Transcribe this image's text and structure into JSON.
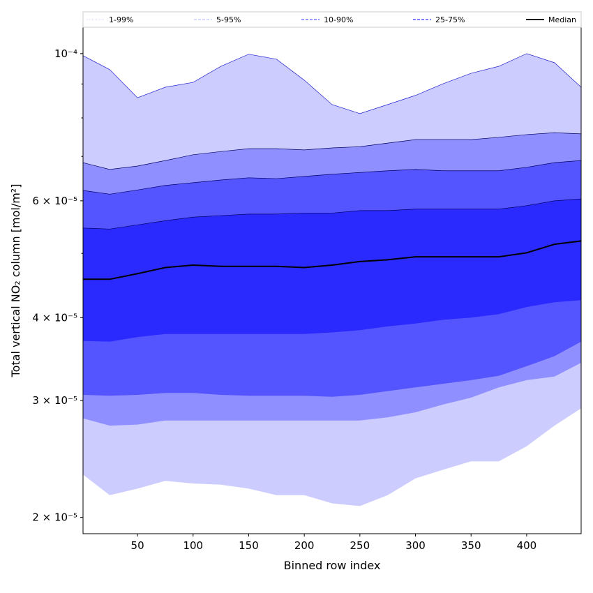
{
  "chart_data": {
    "type": "area",
    "title": "",
    "xlabel": "Binned row index",
    "ylabel": "Total vertical NO₂ column [mol/m²]",
    "yscale": "log",
    "xlim": [
      1,
      449
    ],
    "ylim": [
      1.89e-05,
      0.0001096
    ],
    "value_multiplier": 1e-05,
    "grid": false,
    "legend_placement": "top, above plot, spanning width",
    "x_ticks": [
      50,
      100,
      150,
      200,
      250,
      300,
      350,
      400
    ],
    "x_tick_labels": [
      "50",
      "100",
      "150",
      "200",
      "250",
      "300",
      "350",
      "400"
    ],
    "y_ticks": [
      0.0001,
      6e-05,
      4e-05,
      3e-05,
      2e-05
    ],
    "y_tick_labels": [
      "10⁻⁴",
      "6 × 10⁻⁵",
      "4 × 10⁻⁵",
      "3 × 10⁻⁵",
      "2 × 10⁻⁵"
    ],
    "y_minor_ticks": [
      9e-05,
      8e-05,
      7e-05,
      5e-05
    ],
    "x": [
      1,
      25,
      50,
      75,
      100,
      125,
      150,
      175,
      200,
      225,
      250,
      275,
      300,
      325,
      350,
      375,
      400,
      425,
      449
    ],
    "series": [
      {
        "name": "p99",
        "values": [
          9.93,
          9.46,
          8.58,
          8.9,
          9.05,
          9.57,
          9.98,
          9.81,
          9.12,
          8.38,
          8.12,
          8.38,
          8.65,
          9.01,
          9.34,
          9.57,
          10.0,
          9.69,
          8.9
        ]
      },
      {
        "name": "p95",
        "values": [
          6.85,
          6.69,
          6.77,
          6.9,
          7.04,
          7.12,
          7.19,
          7.19,
          7.16,
          7.21,
          7.24,
          7.33,
          7.42,
          7.42,
          7.42,
          7.48,
          7.55,
          7.6,
          7.57
        ]
      },
      {
        "name": "p90",
        "values": [
          6.22,
          6.14,
          6.23,
          6.33,
          6.39,
          6.45,
          6.5,
          6.48,
          6.53,
          6.58,
          6.62,
          6.66,
          6.69,
          6.66,
          6.66,
          6.66,
          6.74,
          6.85,
          6.9
        ]
      },
      {
        "name": "p75",
        "values": [
          5.46,
          5.44,
          5.52,
          5.6,
          5.67,
          5.7,
          5.73,
          5.73,
          5.75,
          5.75,
          5.8,
          5.8,
          5.83,
          5.83,
          5.83,
          5.83,
          5.9,
          6.0,
          6.04
        ]
      },
      {
        "name": "Median",
        "values": [
          4.57,
          4.57,
          4.66,
          4.76,
          4.8,
          4.78,
          4.78,
          4.78,
          4.76,
          4.8,
          4.86,
          4.89,
          4.94,
          4.94,
          4.94,
          4.94,
          5.01,
          5.16,
          5.22
        ]
      },
      {
        "name": "p25",
        "values": [
          3.69,
          3.68,
          3.74,
          3.78,
          3.78,
          3.78,
          3.78,
          3.78,
          3.78,
          3.8,
          3.83,
          3.88,
          3.92,
          3.97,
          4.0,
          4.05,
          4.15,
          4.22,
          4.25
        ]
      },
      {
        "name": "p10",
        "values": [
          3.06,
          3.05,
          3.06,
          3.08,
          3.08,
          3.06,
          3.05,
          3.05,
          3.05,
          3.04,
          3.06,
          3.1,
          3.14,
          3.18,
          3.22,
          3.27,
          3.38,
          3.5,
          3.68
        ]
      },
      {
        "name": "p5",
        "values": [
          2.82,
          2.75,
          2.76,
          2.8,
          2.8,
          2.8,
          2.8,
          2.8,
          2.8,
          2.8,
          2.8,
          2.83,
          2.88,
          2.96,
          3.03,
          3.14,
          3.22,
          3.26,
          3.42
        ]
      },
      {
        "name": "p1",
        "values": [
          2.32,
          2.16,
          2.21,
          2.27,
          2.25,
          2.24,
          2.21,
          2.16,
          2.16,
          2.1,
          2.08,
          2.16,
          2.29,
          2.36,
          2.43,
          2.43,
          2.56,
          2.75,
          2.92
        ]
      }
    ],
    "bands": [
      {
        "label": "1-99%",
        "lower": "p1",
        "upper": "p99",
        "color": "#ccccff"
      },
      {
        "label": "5-95%",
        "lower": "p5",
        "upper": "p95",
        "color": "#8f8fff"
      },
      {
        "label": "10-90%",
        "lower": "p10",
        "upper": "p90",
        "color": "#5555ff"
      },
      {
        "label": "25-75%",
        "lower": "p25",
        "upper": "p75",
        "color": "#2a2aff"
      }
    ],
    "legend": [
      {
        "label": "1-99%",
        "color": "#ccccff",
        "style": "dotted"
      },
      {
        "label": "5-95%",
        "color": "#9a9aff",
        "style": "dashed"
      },
      {
        "label": "10-90%",
        "color": "#7777ff",
        "style": "dashed"
      },
      {
        "label": "25-75%",
        "color": "#5555ff",
        "style": "dashed"
      },
      {
        "label": "Median",
        "color": "#000000",
        "style": "solid"
      }
    ],
    "median_color": "#000000"
  }
}
